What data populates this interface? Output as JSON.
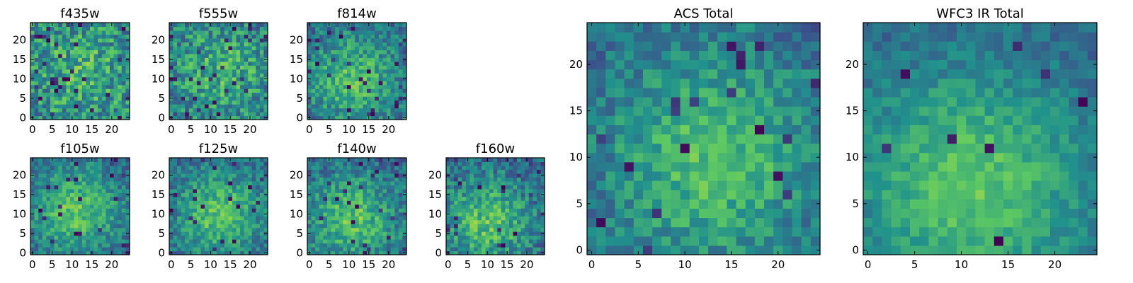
{
  "colormap": "viridis",
  "colormap_stops": [
    "#440154",
    "#3b528b",
    "#21918c",
    "#5ec962",
    "#fde725"
  ],
  "frame_color": "#000000",
  "chart_data": [
    {
      "type": "heatmap",
      "title": "f435w",
      "grid_size": 25,
      "xlim": [
        0,
        24
      ],
      "ylim": [
        0,
        24
      ],
      "xticks": [
        0,
        5,
        10,
        15,
        20
      ],
      "yticks": [
        0,
        5,
        10,
        15,
        20
      ],
      "center": [
        12,
        12
      ],
      "spread": 11,
      "contrast": 0.22,
      "noise": 0.55,
      "outliers": 0.05,
      "seed": 11
    },
    {
      "type": "heatmap",
      "title": "f555w",
      "grid_size": 25,
      "xlim": [
        0,
        24
      ],
      "ylim": [
        0,
        24
      ],
      "xticks": [
        0,
        5,
        10,
        15,
        20
      ],
      "yticks": [
        0,
        5,
        10,
        15,
        20
      ],
      "center": [
        13,
        12
      ],
      "spread": 9,
      "contrast": 0.25,
      "noise": 0.5,
      "outliers": 0.05,
      "seed": 23
    },
    {
      "type": "heatmap",
      "title": "f814w",
      "grid_size": 25,
      "xlim": [
        0,
        24
      ],
      "ylim": [
        0,
        24
      ],
      "xticks": [
        0,
        5,
        10,
        15,
        20
      ],
      "yticks": [
        0,
        5,
        10,
        15,
        20
      ],
      "center": [
        11,
        10
      ],
      "spread": 8,
      "contrast": 0.35,
      "noise": 0.4,
      "outliers": 0.03,
      "seed": 37
    },
    {
      "type": "heatmap",
      "title": "f105w",
      "grid_size": 25,
      "xlim": [
        0,
        24
      ],
      "ylim": [
        0,
        24
      ],
      "xticks": [
        0,
        5,
        10,
        15,
        20
      ],
      "yticks": [
        0,
        5,
        10,
        15,
        20
      ],
      "center": [
        11,
        11
      ],
      "spread": 8,
      "contrast": 0.4,
      "noise": 0.35,
      "outliers": 0.03,
      "seed": 41
    },
    {
      "type": "heatmap",
      "title": "f125w",
      "grid_size": 25,
      "xlim": [
        0,
        24
      ],
      "ylim": [
        0,
        24
      ],
      "xticks": [
        0,
        5,
        10,
        15,
        20
      ],
      "yticks": [
        0,
        5,
        10,
        15,
        20
      ],
      "center": [
        12,
        10
      ],
      "spread": 8,
      "contrast": 0.4,
      "noise": 0.35,
      "outliers": 0.03,
      "seed": 53
    },
    {
      "type": "heatmap",
      "title": "f140w",
      "grid_size": 25,
      "xlim": [
        0,
        24
      ],
      "ylim": [
        0,
        24
      ],
      "xticks": [
        0,
        5,
        10,
        15,
        20
      ],
      "yticks": [
        0,
        5,
        10,
        15,
        20
      ],
      "center": [
        11,
        9
      ],
      "spread": 8,
      "contrast": 0.38,
      "noise": 0.38,
      "outliers": 0.04,
      "seed": 67
    },
    {
      "type": "heatmap",
      "title": "f160w",
      "grid_size": 25,
      "xlim": [
        0,
        24
      ],
      "ylim": [
        0,
        24
      ],
      "xticks": [
        0,
        5,
        10,
        15,
        20
      ],
      "yticks": [
        0,
        5,
        10,
        15,
        20
      ],
      "center": [
        10,
        8
      ],
      "spread": 8,
      "contrast": 0.38,
      "noise": 0.4,
      "outliers": 0.04,
      "seed": 79
    },
    {
      "type": "heatmap",
      "title": "ACS Total",
      "grid_size": 25,
      "xlim": [
        0,
        24
      ],
      "ylim": [
        0,
        24
      ],
      "xticks": [
        0,
        5,
        10,
        15,
        20
      ],
      "yticks": [
        0,
        5,
        10,
        15,
        20
      ],
      "center": [
        13,
        10
      ],
      "spread": 8,
      "contrast": 0.38,
      "noise": 0.32,
      "outliers": 0.03,
      "seed": 97
    },
    {
      "type": "heatmap",
      "title": "WFC3 IR Total",
      "grid_size": 25,
      "xlim": [
        0,
        24
      ],
      "ylim": [
        0,
        24
      ],
      "xticks": [
        0,
        5,
        10,
        15,
        20
      ],
      "yticks": [
        0,
        5,
        10,
        15,
        20
      ],
      "center": [
        11,
        7
      ],
      "spread": 9,
      "contrast": 0.42,
      "noise": 0.22,
      "outliers": 0.02,
      "seed": 113
    }
  ]
}
